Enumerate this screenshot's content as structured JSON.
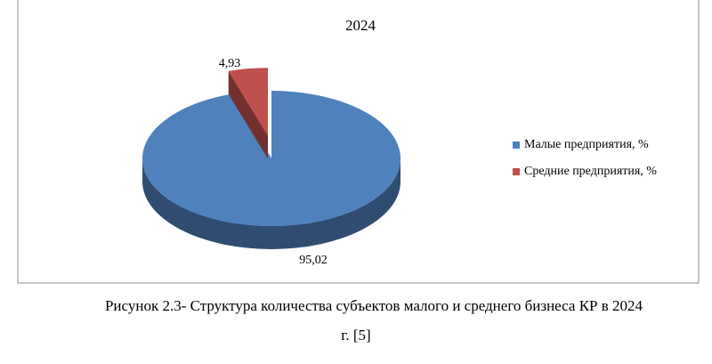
{
  "chart_data": {
    "type": "pie",
    "title": "2024",
    "categories": [
      "Малые предприятия, %",
      "Средние предприятия, %"
    ],
    "values": [
      95.02,
      4.93
    ],
    "value_labels": [
      "95,02",
      "4,93"
    ],
    "colors": [
      "#4f81bd",
      "#c0504d"
    ],
    "legend": "right"
  },
  "caption": [
    "Рисунок 2.3- Структура количества субъектов малого и среднего бизнеса КР  в 2024",
    "г. [5]"
  ]
}
